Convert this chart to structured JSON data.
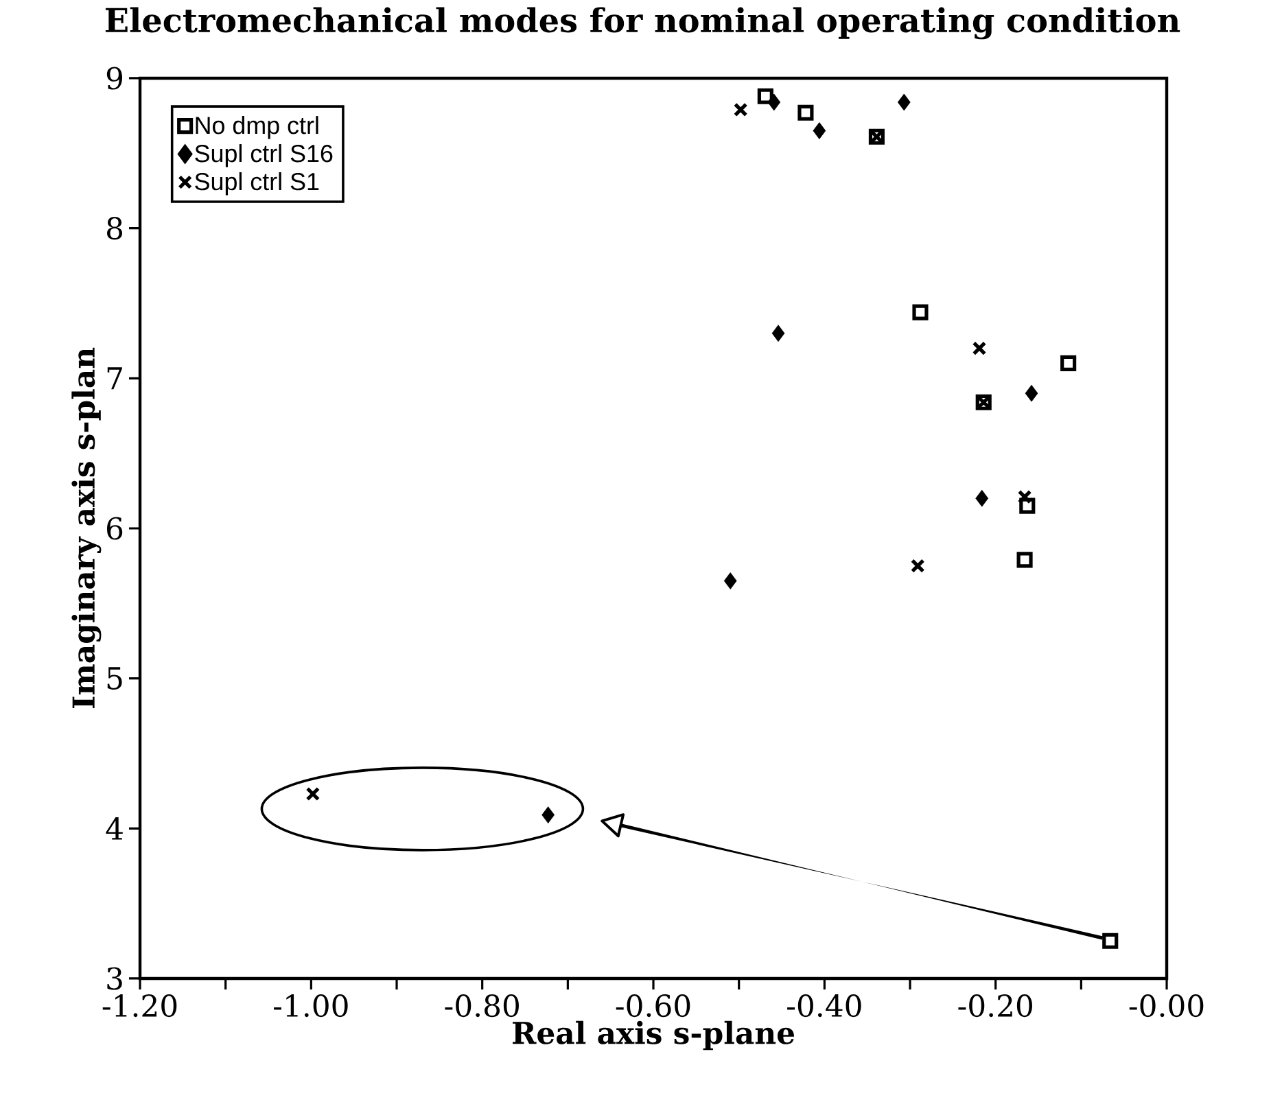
{
  "chart_data": {
    "type": "scatter",
    "title": "Electromechanical modes for nominal operating condition",
    "xlabel": "Real axis s-plane",
    "ylabel": "Imaginary axis s-plan",
    "xlim": [
      -1.2,
      0
    ],
    "ylim": [
      3,
      9
    ],
    "xticks": [
      {
        "value": -1.2,
        "label": "-1.20"
      },
      {
        "value": -1.1,
        "label": null
      },
      {
        "value": -1.0,
        "label": "-1.00"
      },
      {
        "value": -0.9,
        "label": null
      },
      {
        "value": -0.8,
        "label": "-0.80"
      },
      {
        "value": -0.7,
        "label": null
      },
      {
        "value": -0.6,
        "label": "-0.60"
      },
      {
        "value": -0.5,
        "label": null
      },
      {
        "value": -0.4,
        "label": "-0.40"
      },
      {
        "value": -0.3,
        "label": null
      },
      {
        "value": -0.2,
        "label": "-0.20"
      },
      {
        "value": -0.1,
        "label": null
      },
      {
        "value": 0,
        "label": "-0.00"
      }
    ],
    "yticks": [
      3,
      4,
      5,
      6,
      7,
      8,
      9
    ],
    "grid": false,
    "legend": "top left",
    "series": [
      {
        "name": "No dmp ctrl",
        "color": "#000000",
        "marker": "square",
        "x": [
          -0.422,
          -0.469,
          -0.339,
          -0.288,
          -0.115,
          -0.214,
          -0.163,
          -0.166,
          -0.066
        ],
        "values": [
          8.77,
          8.88,
          8.61,
          7.44,
          7.1,
          6.84,
          6.15,
          5.79,
          3.25
        ]
      },
      {
        "name": "Supl ctrl S16",
        "color": "#000000",
        "marker": "diamond",
        "x": [
          -0.459,
          -0.406,
          -0.307,
          -0.454,
          -0.158,
          -0.216,
          -0.51,
          -0.723
        ],
        "values": [
          8.84,
          8.65,
          8.84,
          7.3,
          6.9,
          6.2,
          5.65,
          4.09
        ]
      },
      {
        "name": "Supl ctrl S1",
        "color": "#000000",
        "marker": "cross",
        "x": [
          -0.498,
          -0.339,
          -0.219,
          -0.214,
          -0.166,
          -0.291,
          -0.998
        ],
        "values": [
          8.79,
          8.61,
          7.2,
          6.84,
          6.21,
          5.75,
          4.23
        ]
      }
    ]
  }
}
